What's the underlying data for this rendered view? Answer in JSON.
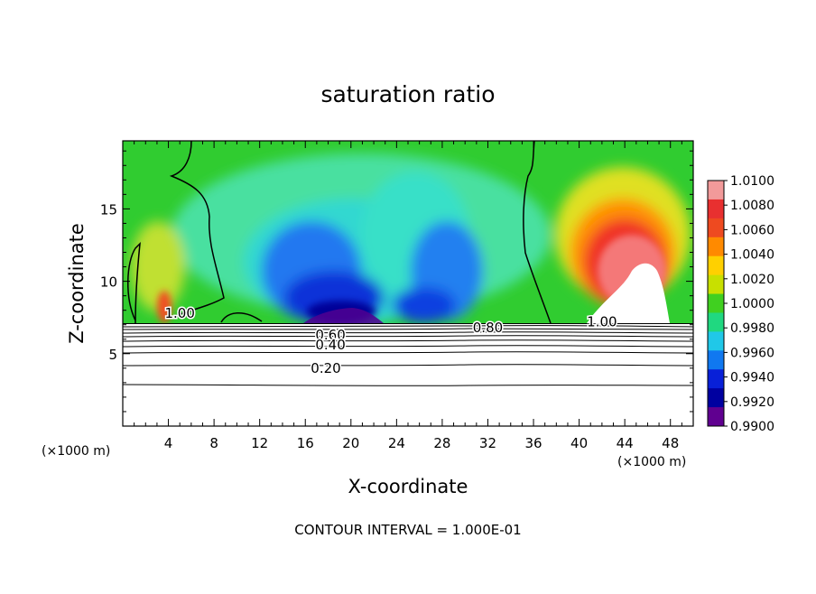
{
  "chart_data": {
    "type": "heatmap",
    "title": "saturation ratio",
    "xlabel": "X-coordinate",
    "ylabel": "Z-coordinate",
    "x_unit": "(×1000 m)",
    "y_unit": "(×1000 m)",
    "xlim": [
      0,
      50
    ],
    "ylim": [
      0,
      19.7
    ],
    "x_ticks": [
      4,
      8,
      12,
      16,
      20,
      24,
      28,
      32,
      36,
      40,
      44,
      48
    ],
    "y_ticks": [
      5,
      10,
      15
    ],
    "colorbar": {
      "levels": [
        "1.0100",
        "1.0080",
        "1.0060",
        "1.0040",
        "1.0020",
        "1.0000",
        "0.9980",
        "0.9960",
        "0.9940",
        "0.9920",
        "0.9900"
      ],
      "colors": [
        "#f29a9a",
        "#e83030",
        "#ee4a20",
        "#ff8a00",
        "#ffd000",
        "#c8e000",
        "#40d020",
        "#20d880",
        "#20c8e8",
        "#1078f0",
        "#0820d8",
        "#0000a0",
        "#600090"
      ]
    },
    "contour_labels": [
      {
        "text": "1.00",
        "x": 5.0,
        "z": 7.8
      },
      {
        "text": "0.60",
        "x": 18.2,
        "z": 6.3
      },
      {
        "text": "0.40",
        "x": 18.2,
        "z": 5.6
      },
      {
        "text": "0.20",
        "x": 17.8,
        "z": 4.0
      },
      {
        "text": "0.80",
        "x": 32.0,
        "z": 6.8
      },
      {
        "text": "1.00",
        "x": 42.0,
        "z": 7.2
      }
    ],
    "footer": "CONTOUR INTERVAL = 1.000E-01"
  }
}
